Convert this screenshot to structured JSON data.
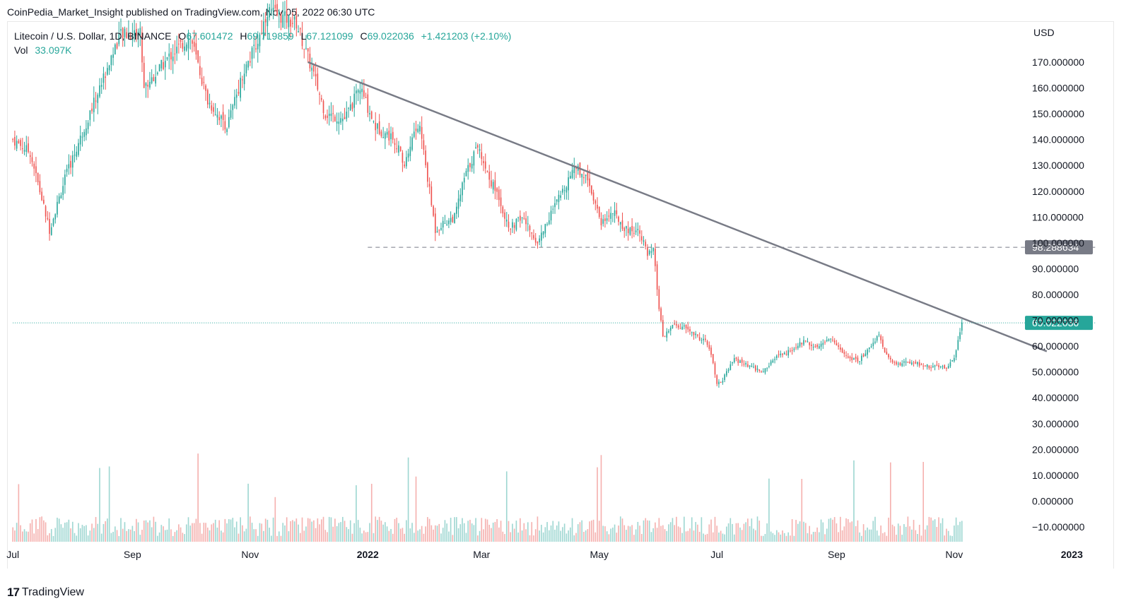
{
  "header": {
    "publisher": "CoinPedia_Market_Insight published on TradingView.com, Nov 05, 2022 06:30 UTC"
  },
  "legend": {
    "symbol": "Litecoin / U.S. Dollar, 1D, BINANCE",
    "open_label": "O",
    "open": "67.601472",
    "high_label": "H",
    "high": "69.719859",
    "low_label": "L",
    "low": "67.121099",
    "close_label": "C",
    "close": "69.022036",
    "change": "+1.421203 (+2.10%)",
    "vol_label": "Vol",
    "vol": "33.097K"
  },
  "footer": {
    "brand": "TradingView",
    "logo": "17"
  },
  "colors": {
    "up": "#26a69a",
    "down": "#ef5350",
    "up_vol": "#9fd7d2",
    "down_vol": "#f5b1af",
    "trendline": "#787b86",
    "price_line": "#26a69a",
    "level_badge": "#787b86"
  },
  "chart_data": {
    "type": "candlestick",
    "symbol": "LTCUSD",
    "interval": "1D",
    "currency": "USD",
    "ylim": [
      -15,
      185
    ],
    "y_ticks": [
      "170.000000",
      "160.000000",
      "150.000000",
      "140.000000",
      "130.000000",
      "120.000000",
      "110.000000",
      "100.000000",
      "90.000000",
      "80.000000",
      "70.000000",
      "60.000000",
      "50.000000",
      "40.000000",
      "30.000000",
      "20.000000",
      "10.000000",
      "0.000000",
      "−10.000000"
    ],
    "y_tick_values": [
      170,
      160,
      150,
      140,
      130,
      120,
      110,
      100,
      90,
      80,
      70,
      60,
      50,
      40,
      30,
      20,
      10,
      0,
      -10
    ],
    "x_ticks": [
      {
        "label": "Jul",
        "date": "2021-07-01",
        "bold": false
      },
      {
        "label": "Sep",
        "date": "2021-09-01",
        "bold": false
      },
      {
        "label": "Nov",
        "date": "2021-11-01",
        "bold": false
      },
      {
        "label": "2022",
        "date": "2022-01-01",
        "bold": true
      },
      {
        "label": "Mar",
        "date": "2022-03-01",
        "bold": false
      },
      {
        "label": "May",
        "date": "2022-05-01",
        "bold": false
      },
      {
        "label": "Jul",
        "date": "2022-07-01",
        "bold": false
      },
      {
        "label": "Sep",
        "date": "2022-09-01",
        "bold": false
      },
      {
        "label": "Nov",
        "date": "2022-11-01",
        "bold": false
      },
      {
        "label": "2023",
        "date": "2023-01-01",
        "bold": true
      }
    ],
    "price_path": [
      [
        "2021-07-01",
        140
      ],
      [
        "2021-07-10",
        135
      ],
      [
        "2021-07-20",
        105
      ],
      [
        "2021-07-28",
        125
      ],
      [
        "2021-08-15",
        160
      ],
      [
        "2021-08-25",
        180
      ],
      [
        "2021-09-05",
        182
      ],
      [
        "2021-09-07",
        160
      ],
      [
        "2021-09-20",
        172
      ],
      [
        "2021-10-01",
        180
      ],
      [
        "2021-10-10",
        155
      ],
      [
        "2021-10-20",
        145
      ],
      [
        "2021-10-28",
        165
      ],
      [
        "2021-11-05",
        178
      ],
      [
        "2021-11-10",
        190
      ],
      [
        "2021-11-25",
        185
      ],
      [
        "2021-12-04",
        165
      ],
      [
        "2021-12-10",
        150
      ],
      [
        "2021-12-20",
        148
      ],
      [
        "2021-12-28",
        160
      ],
      [
        "2022-01-05",
        145
      ],
      [
        "2022-01-15",
        140
      ],
      [
        "2022-01-20",
        130
      ],
      [
        "2022-01-25",
        143
      ],
      [
        "2022-01-28",
        145
      ],
      [
        "2022-02-01",
        125
      ],
      [
        "2022-02-05",
        105
      ],
      [
        "2022-02-10",
        108
      ],
      [
        "2022-02-15",
        110
      ],
      [
        "2022-02-20",
        125
      ],
      [
        "2022-02-27",
        138
      ],
      [
        "2022-03-05",
        125
      ],
      [
        "2022-03-10",
        118
      ],
      [
        "2022-03-15",
        105
      ],
      [
        "2022-03-22",
        110
      ],
      [
        "2022-03-30",
        100
      ],
      [
        "2022-04-05",
        110
      ],
      [
        "2022-04-12",
        120
      ],
      [
        "2022-04-18",
        130
      ],
      [
        "2022-04-25",
        125
      ],
      [
        "2022-05-02",
        108
      ],
      [
        "2022-05-08",
        112
      ],
      [
        "2022-05-15",
        105
      ],
      [
        "2022-05-22",
        105
      ],
      [
        "2022-05-26",
        95
      ],
      [
        "2022-05-29",
        97
      ],
      [
        "2022-06-01",
        75
      ],
      [
        "2022-06-03",
        63
      ],
      [
        "2022-06-08",
        68
      ],
      [
        "2022-06-15",
        67
      ],
      [
        "2022-06-20",
        64
      ],
      [
        "2022-06-25",
        62
      ],
      [
        "2022-06-28",
        57
      ],
      [
        "2022-07-01",
        45
      ],
      [
        "2022-07-04",
        47
      ],
      [
        "2022-07-10",
        55
      ],
      [
        "2022-07-18",
        52
      ],
      [
        "2022-07-25",
        50
      ],
      [
        "2022-08-01",
        56
      ],
      [
        "2022-08-08",
        58
      ],
      [
        "2022-08-15",
        62
      ],
      [
        "2022-08-22",
        60
      ],
      [
        "2022-08-29",
        63
      ],
      [
        "2022-09-05",
        57
      ],
      [
        "2022-09-12",
        54
      ],
      [
        "2022-09-19",
        60
      ],
      [
        "2022-09-23",
        65
      ],
      [
        "2022-09-26",
        57
      ],
      [
        "2022-10-02",
        53
      ],
      [
        "2022-10-10",
        54
      ],
      [
        "2022-10-20",
        52
      ],
      [
        "2022-10-28",
        52
      ],
      [
        "2022-11-01",
        55
      ],
      [
        "2022-11-03",
        63
      ],
      [
        "2022-11-05",
        69.02
      ]
    ],
    "trendline": [
      [
        "2021-12-01",
        170
      ],
      [
        "2022-12-19",
        58
      ]
    ],
    "horizontal_levels": [
      {
        "value": 98.288634,
        "label": "98.288634",
        "style": "dashed",
        "from": "2022-01-01"
      },
      {
        "value": 69.022036,
        "label": "69.022036",
        "style": "dotted",
        "from": "2021-07-01"
      }
    ],
    "volume_note": "Volume bars shown in lower pane, scale unlabeled; peaks near Sep 2021, Nov 2021, May 2022, Jun 2022."
  }
}
